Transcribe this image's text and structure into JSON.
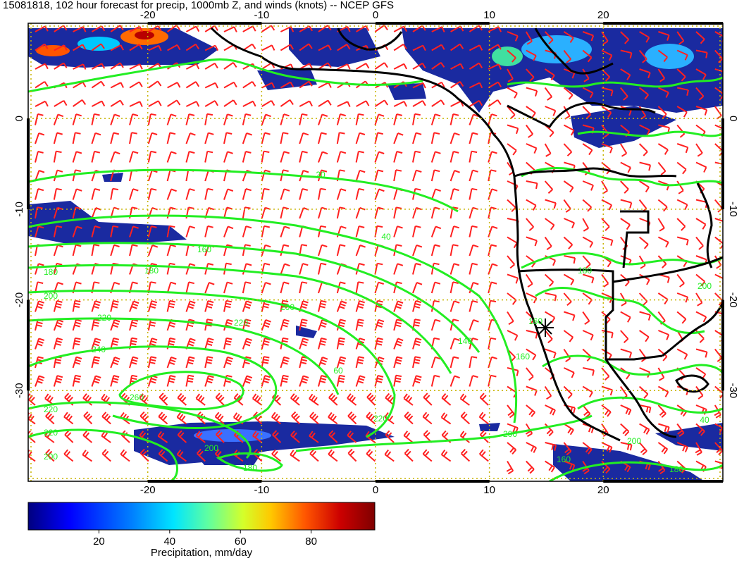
{
  "title": "15081818, 102 hour forecast for precip, 1000mb Z, and winds (knots) -- NCEP GFS",
  "map": {
    "lon_ticks": [
      "-20",
      "-10",
      "0",
      "10",
      "20"
    ],
    "lon_values": [
      -20,
      -10,
      0,
      10,
      20
    ],
    "lat_ticks": [
      "0",
      "-10",
      "-20",
      "-30"
    ],
    "lat_values": [
      0,
      -10,
      -20,
      -30
    ],
    "extent": {
      "lon_min": -30.5,
      "lon_max": 30.5,
      "lat_min": -40,
      "lat_max": 10.5
    },
    "colors": {
      "contour": "#22ee22",
      "barb": "#ff2020",
      "coast": "#000000",
      "grid": "#c8b400"
    },
    "contour_labels": [
      "20",
      "40",
      "160",
      "180",
      "180",
      "200",
      "200",
      "220",
      "220",
      "240",
      "260",
      "220",
      "220",
      "200",
      "180",
      "200",
      "140",
      "160",
      "220",
      "200",
      "160",
      "180",
      "160",
      "200",
      "200",
      "40",
      "180",
      "60"
    ]
  },
  "colorbar": {
    "label": "Precipitation, mm/day",
    "ticks": [
      "20",
      "40",
      "60",
      "80"
    ],
    "tick_values": [
      20,
      40,
      60,
      80
    ],
    "min": 0,
    "max": 98,
    "colors": [
      "#00007f",
      "#0000ff",
      "#0080ff",
      "#00e5ff",
      "#60ff9f",
      "#d4ff2a",
      "#ffc800",
      "#ff5500",
      "#cc0000",
      "#7f0000"
    ]
  }
}
